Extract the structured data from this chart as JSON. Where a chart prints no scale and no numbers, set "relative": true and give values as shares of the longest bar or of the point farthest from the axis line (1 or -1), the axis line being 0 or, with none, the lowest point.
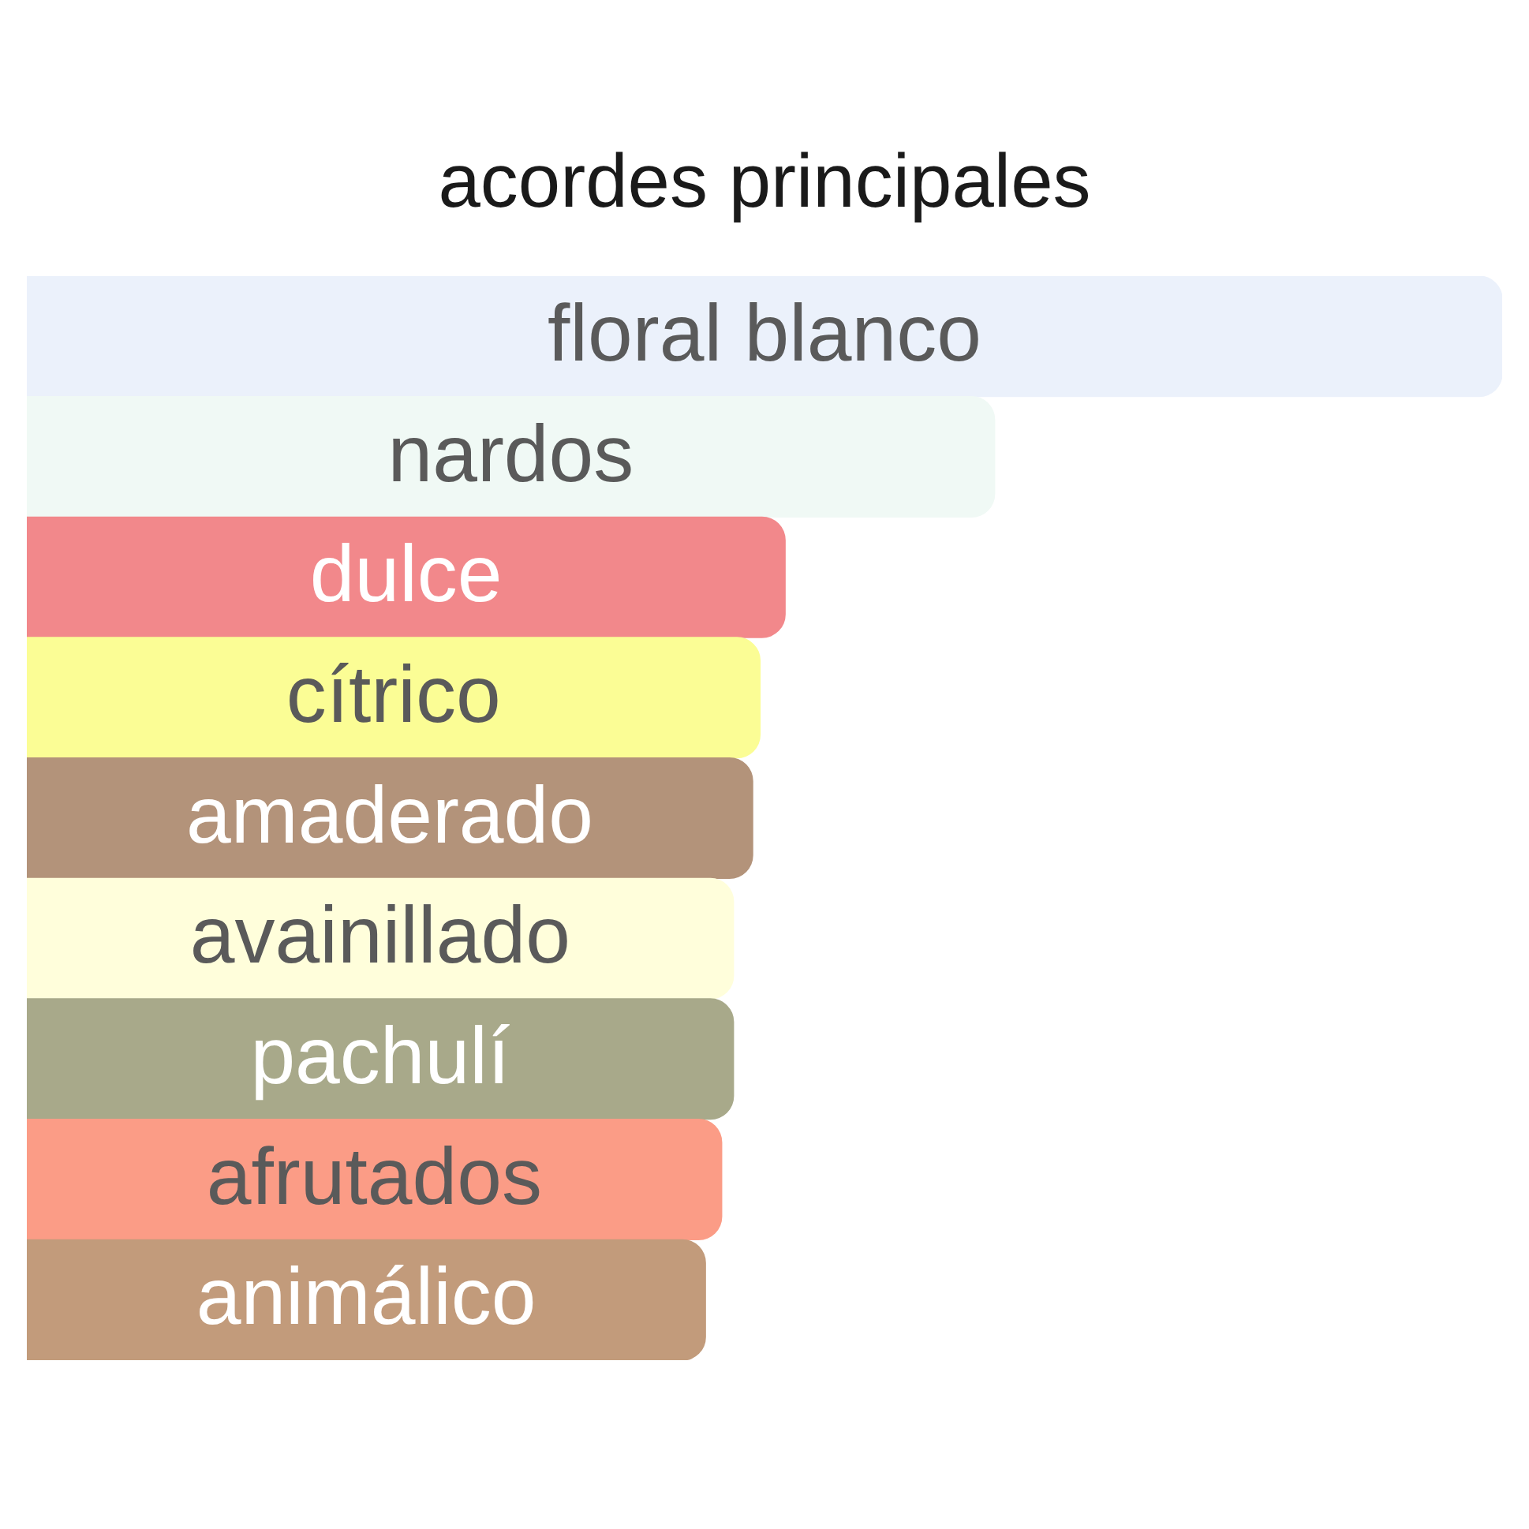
{
  "chart_data": {
    "type": "bar",
    "orientation": "horizontal",
    "relative": true,
    "title": "acordes principales",
    "categories": [
      "floral blanco",
      "nardos",
      "dulce",
      "cítrico",
      "amaderado",
      "avainillado",
      "pachulí",
      "afrutados",
      "animálico"
    ],
    "values": [
      1,
      0.656,
      0.514,
      0.497,
      0.492,
      0.479,
      0.479,
      0.471,
      0.46
    ],
    "colors": [
      "#ebf1fb",
      "#f0f9f5",
      "#f2888b",
      "#fbfd95",
      "#b3937a",
      "#fffedb",
      "#a8a98a",
      "#fb9c86",
      "#c29b7b"
    ]
  }
}
